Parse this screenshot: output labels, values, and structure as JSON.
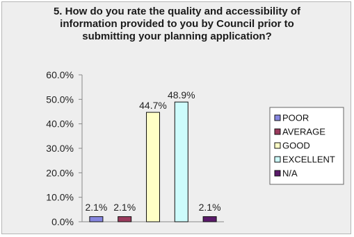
{
  "chart_data": {
    "type": "bar",
    "title_lines": [
      "5. How do you rate the quality and accessibility of",
      "information provided to you by Council prior to",
      "submitting your planning application?"
    ],
    "xlabel": "",
    "ylabel": "",
    "ylim": [
      0,
      60
    ],
    "y_ticks": [
      "0.0%",
      "10.0%",
      "20.0%",
      "30.0%",
      "40.0%",
      "50.0%",
      "60.0%"
    ],
    "grid": false,
    "legend_position": "right",
    "series": [
      {
        "name": "POOR",
        "value": 2.1,
        "label": "2.1%",
        "color": "#8686e0"
      },
      {
        "name": "AVERAGE",
        "value": 2.1,
        "label": "2.1%",
        "color": "#9a3a5c"
      },
      {
        "name": "GOOD",
        "value": 44.7,
        "label": "44.7%",
        "color": "#ffffc6"
      },
      {
        "name": "EXCELLENT",
        "value": 48.9,
        "label": "48.9%",
        "color": "#cdfcfc"
      },
      {
        "name": "N/A",
        "value": 2.1,
        "label": "2.1%",
        "color": "#5a1a6a"
      }
    ]
  }
}
